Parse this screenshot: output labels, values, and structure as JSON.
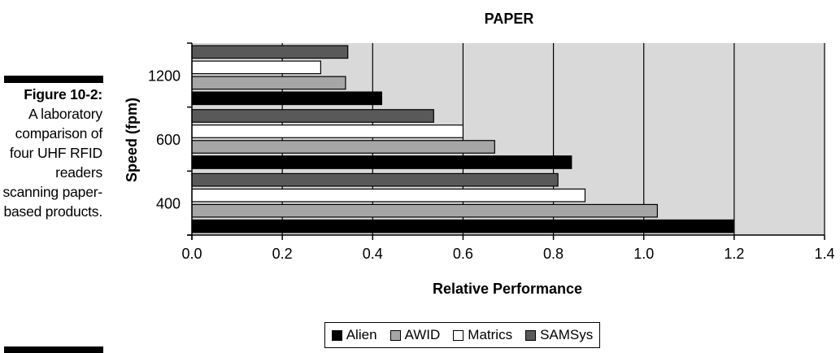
{
  "caption": {
    "figure_label": "Figure 10-2:",
    "text": "A laboratory comparison of four UHF RFID readers scanning paper-based products."
  },
  "chart_data": {
    "type": "bar",
    "orientation": "horizontal",
    "title": "PAPER",
    "xlabel": "Relative Performance",
    "ylabel": "Speed (fpm)",
    "xlim": [
      0,
      1.4
    ],
    "xticks": [
      "0.0",
      "0.2",
      "0.4",
      "0.6",
      "0.8",
      "1.0",
      "1.2",
      "1.4"
    ],
    "categories": [
      "400",
      "600",
      "1200"
    ],
    "series": [
      {
        "name": "Alien",
        "color": "#000000",
        "values": [
          1.2,
          0.84,
          0.42
        ]
      },
      {
        "name": "AWID",
        "color": "#a6a6a6",
        "values": [
          1.03,
          0.67,
          0.34
        ]
      },
      {
        "name": "Matrics",
        "color": "#ffffff",
        "values": [
          0.87,
          0.6,
          0.285
        ]
      },
      {
        "name": "SAMSys",
        "color": "#595959",
        "values": [
          0.81,
          0.535,
          0.345
        ]
      }
    ],
    "grid": true,
    "plot_background": "#d9d9d9",
    "legend_position": "bottom"
  }
}
